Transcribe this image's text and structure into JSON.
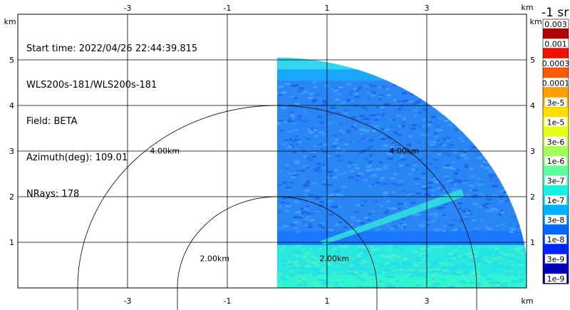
{
  "info": {
    "start_time": "Start time: 2022/04/26 22:44:39.815",
    "instrument": "WLS200s-181/WLS200s-181",
    "field": "Field: BETA",
    "azimuth": "Azimuth(deg): 109.01",
    "nrays": "NRays: 178"
  },
  "axes": {
    "unit": "km",
    "x_ticks": [
      {
        "value": -3,
        "label": "-3"
      },
      {
        "value": -1,
        "label": "-1"
      },
      {
        "value": 1,
        "label": "1"
      },
      {
        "value": 3,
        "label": "3"
      }
    ],
    "y_ticks": [
      {
        "value": 1,
        "label": "1"
      },
      {
        "value": 2,
        "label": "2"
      },
      {
        "value": 3,
        "label": "3"
      },
      {
        "value": 4,
        "label": "4"
      },
      {
        "value": 5,
        "label": "5"
      }
    ],
    "xlim": [
      -5.2,
      5.0
    ],
    "ylim": [
      0,
      6.0
    ]
  },
  "range_rings": [
    {
      "radius_km": 2.0,
      "label": "2.00km"
    },
    {
      "radius_km": 4.0,
      "label": "4.00km"
    }
  ],
  "colorbar": {
    "title": "-1 sr",
    "top_label": "0.003",
    "levels": [
      {
        "label": "0.003",
        "color": "#8b0000",
        "text_bg": true
      },
      {
        "label": "",
        "color": "#b00000",
        "text_bg": false
      },
      {
        "label": "0.001",
        "color": "#d40000",
        "text_bg": true
      },
      {
        "label": "",
        "color": "#ee1000",
        "text_bg": false
      },
      {
        "label": "0.0003",
        "color": "#ff2a00",
        "text_bg": true
      },
      {
        "label": "",
        "color": "#ff5a00",
        "text_bg": false
      },
      {
        "label": "0.0001",
        "color": "#ff7f00",
        "text_bg": true
      },
      {
        "label": "",
        "color": "#ffa000",
        "text_bg": false
      },
      {
        "label": "3e-5",
        "color": "#ffbf00",
        "text_bg": true
      },
      {
        "label": "",
        "color": "#ffdf00",
        "text_bg": false
      },
      {
        "label": "1e-5",
        "color": "#ffff00",
        "text_bg": true
      },
      {
        "label": "",
        "color": "#e6ff1a",
        "text_bg": false
      },
      {
        "label": "3e-6",
        "color": "#c8ff36",
        "text_bg": true
      },
      {
        "label": "",
        "color": "#a4ff5a",
        "text_bg": false
      },
      {
        "label": "1e-6",
        "color": "#82ff7c",
        "text_bg": true
      },
      {
        "label": "",
        "color": "#5eff9e",
        "text_bg": false
      },
      {
        "label": "3e-7",
        "color": "#3cffc0",
        "text_bg": true
      },
      {
        "label": "",
        "color": "#18f0e4",
        "text_bg": false
      },
      {
        "label": "1e-7",
        "color": "#00d4ff",
        "text_bg": true
      },
      {
        "label": "",
        "color": "#00b0ff",
        "text_bg": false
      },
      {
        "label": "3e-8",
        "color": "#008cff",
        "text_bg": true
      },
      {
        "label": "",
        "color": "#0068ff",
        "text_bg": false
      },
      {
        "label": "1e-8",
        "color": "#0046ff",
        "text_bg": true
      },
      {
        "label": "",
        "color": "#0022ff",
        "text_bg": false
      },
      {
        "label": "3e-9",
        "color": "#0000e8",
        "text_bg": true
      },
      {
        "label": "",
        "color": "#0000b8",
        "text_bg": false
      },
      {
        "label": "1e-9",
        "color": "#00008b",
        "text_bg": true
      }
    ]
  },
  "scan": {
    "max_range_km": 5.05,
    "azimuth_deg": 109.01,
    "bands": [
      {
        "from_km": 0.0,
        "to_km": 0.3,
        "color": "#2ef5d2"
      },
      {
        "from_km": 0.3,
        "to_km": 0.95,
        "color": "#28e8e0"
      },
      {
        "from_km": 0.95,
        "to_km": 1.25,
        "color": "#1a78ff"
      },
      {
        "from_km": 1.25,
        "to_km": 4.55,
        "color": "#2a86f5"
      },
      {
        "from_km": 4.55,
        "to_km": 4.8,
        "color": "#1aa8ff"
      },
      {
        "from_km": 4.8,
        "to_km": 5.05,
        "color": "#34d6ee"
      }
    ]
  }
}
